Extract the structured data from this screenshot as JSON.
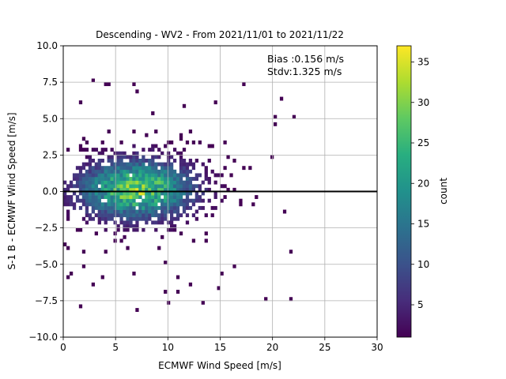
{
  "chart_data": {
    "type": "heatmap",
    "title": "Descending - WV2 - From 2021/11/01 to 2021/11/22",
    "xlabel": "ECMWF Wind Speed [m/s]",
    "ylabel": "S-1 B - ECMWF Wind Speed [m/s]",
    "xlim": [
      0,
      30
    ],
    "ylim": [
      -10,
      10
    ],
    "xticks": [
      "0",
      "5",
      "10",
      "15",
      "20",
      "25",
      "30"
    ],
    "yticks": [
      "−10.0",
      "−7.5",
      "−5.0",
      "−2.5",
      "0.0",
      "2.5",
      "5.0",
      "7.5",
      "10.0"
    ],
    "grid": true,
    "reference_line_y": 0,
    "annotation": {
      "bias": "Bias :0.156 m/s",
      "stdv": "Stdv:1.325 m/s"
    },
    "colorbar": {
      "label": "count",
      "min": 1,
      "max": 37,
      "ticks": [
        "5",
        "10",
        "15",
        "20",
        "25",
        "30",
        "35"
      ],
      "colormap": "viridis"
    },
    "density_model": {
      "center_x": 7.0,
      "center_y": 0.156,
      "sigma_x": 3.6,
      "sigma_y": 1.325,
      "peak_count": 37
    }
  }
}
